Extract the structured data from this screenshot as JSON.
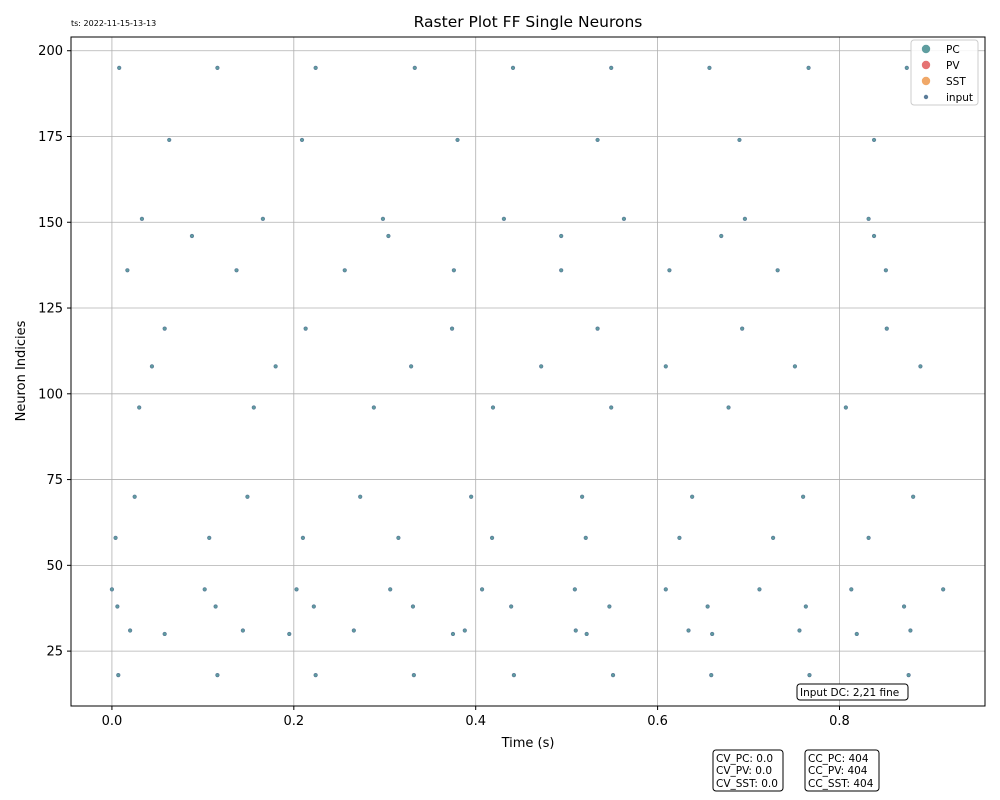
{
  "timestamp": "ts: 2022-11-15-13-13",
  "input_dc_label": "Input DC: 2,21 fine",
  "stats_cv": [
    "CV_PC: 0.0",
    "CV_PV: 0.0",
    "CV_SST: 0.0"
  ],
  "stats_cc": [
    "CC_PC: 404",
    "CC_PV: 404",
    "CC_SST: 404"
  ],
  "colors": {
    "pc": "#5f9ea0",
    "pv": "#e57373",
    "sst": "#f0a868",
    "input": "#5b7c99",
    "grid": "#b0b0b0"
  },
  "chart_data": {
    "type": "scatter",
    "title": "Raster Plot FF Single Neurons",
    "xlabel": "Time (s)",
    "ylabel": "Neuron Indicies",
    "xlim": [
      -0.045,
      0.96
    ],
    "ylim": [
      9,
      204
    ],
    "x_ticks": [
      0.0,
      0.2,
      0.4,
      0.6,
      0.8
    ],
    "x_tick_labels": [
      "0.0",
      "0.2",
      "0.4",
      "0.6",
      "0.8"
    ],
    "y_ticks": [
      25,
      50,
      75,
      100,
      125,
      150,
      175,
      200
    ],
    "y_tick_labels": [
      "25",
      "50",
      "75",
      "100",
      "125",
      "150",
      "175",
      "200"
    ],
    "grid": true,
    "legend_position": "top-right",
    "legend": [
      "PC",
      "PV",
      "SST",
      "input"
    ],
    "series": [
      {
        "name": "PC",
        "points": []
      },
      {
        "name": "PV",
        "points": []
      },
      {
        "name": "SST",
        "points": []
      },
      {
        "name": "input",
        "points": [
          [
            0.008,
            195
          ],
          [
            0.116,
            195
          ],
          [
            0.224,
            195
          ],
          [
            0.333,
            195
          ],
          [
            0.441,
            195
          ],
          [
            0.549,
            195
          ],
          [
            0.657,
            195
          ],
          [
            0.766,
            195
          ],
          [
            0.874,
            195
          ],
          [
            0.063,
            174
          ],
          [
            0.209,
            174
          ],
          [
            0.38,
            174
          ],
          [
            0.534,
            174
          ],
          [
            0.69,
            174
          ],
          [
            0.838,
            174
          ],
          [
            0.033,
            151
          ],
          [
            0.166,
            151
          ],
          [
            0.298,
            151
          ],
          [
            0.431,
            151
          ],
          [
            0.563,
            151
          ],
          [
            0.696,
            151
          ],
          [
            0.832,
            151
          ],
          [
            0.088,
            146
          ],
          [
            0.304,
            146
          ],
          [
            0.494,
            146
          ],
          [
            0.67,
            146
          ],
          [
            0.838,
            146
          ],
          [
            0.017,
            136
          ],
          [
            0.137,
            136
          ],
          [
            0.256,
            136
          ],
          [
            0.376,
            136
          ],
          [
            0.494,
            136
          ],
          [
            0.613,
            136
          ],
          [
            0.732,
            136
          ],
          [
            0.851,
            136
          ],
          [
            0.058,
            119
          ],
          [
            0.213,
            119
          ],
          [
            0.374,
            119
          ],
          [
            0.534,
            119
          ],
          [
            0.693,
            119
          ],
          [
            0.852,
            119
          ],
          [
            0.044,
            108
          ],
          [
            0.18,
            108
          ],
          [
            0.329,
            108
          ],
          [
            0.472,
            108
          ],
          [
            0.609,
            108
          ],
          [
            0.751,
            108
          ],
          [
            0.889,
            108
          ],
          [
            0.03,
            96
          ],
          [
            0.156,
            96
          ],
          [
            0.288,
            96
          ],
          [
            0.419,
            96
          ],
          [
            0.549,
            96
          ],
          [
            0.678,
            96
          ],
          [
            0.807,
            96
          ],
          [
            0.025,
            70
          ],
          [
            0.149,
            70
          ],
          [
            0.273,
            70
          ],
          [
            0.395,
            70
          ],
          [
            0.517,
            70
          ],
          [
            0.638,
            70
          ],
          [
            0.76,
            70
          ],
          [
            0.881,
            70
          ],
          [
            0.004,
            58
          ],
          [
            0.107,
            58
          ],
          [
            0.21,
            58
          ],
          [
            0.315,
            58
          ],
          [
            0.418,
            58
          ],
          [
            0.521,
            58
          ],
          [
            0.624,
            58
          ],
          [
            0.727,
            58
          ],
          [
            0.832,
            58
          ],
          [
            0.0,
            43
          ],
          [
            0.102,
            43
          ],
          [
            0.203,
            43
          ],
          [
            0.306,
            43
          ],
          [
            0.407,
            43
          ],
          [
            0.509,
            43
          ],
          [
            0.609,
            43
          ],
          [
            0.712,
            43
          ],
          [
            0.813,
            43
          ],
          [
            0.914,
            43
          ],
          [
            0.006,
            38
          ],
          [
            0.114,
            38
          ],
          [
            0.222,
            38
          ],
          [
            0.331,
            38
          ],
          [
            0.439,
            38
          ],
          [
            0.547,
            38
          ],
          [
            0.655,
            38
          ],
          [
            0.763,
            38
          ],
          [
            0.871,
            38
          ],
          [
            0.02,
            31
          ],
          [
            0.144,
            31
          ],
          [
            0.266,
            31
          ],
          [
            0.388,
            31
          ],
          [
            0.51,
            31
          ],
          [
            0.634,
            31
          ],
          [
            0.756,
            31
          ],
          [
            0.878,
            31
          ],
          [
            0.058,
            30
          ],
          [
            0.195,
            30
          ],
          [
            0.375,
            30
          ],
          [
            0.522,
            30
          ],
          [
            0.66,
            30
          ],
          [
            0.819,
            30
          ],
          [
            0.007,
            18
          ],
          [
            0.116,
            18
          ],
          [
            0.224,
            18
          ],
          [
            0.332,
            18
          ],
          [
            0.442,
            18
          ],
          [
            0.551,
            18
          ],
          [
            0.659,
            18
          ],
          [
            0.767,
            18
          ],
          [
            0.876,
            18
          ]
        ]
      }
    ]
  }
}
